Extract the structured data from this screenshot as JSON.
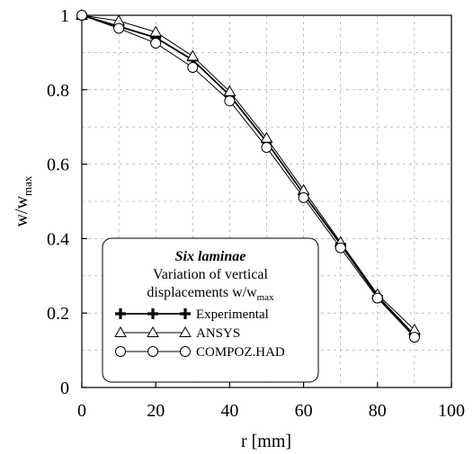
{
  "chart_data": {
    "type": "line",
    "xlabel": "r [mm]",
    "ylabel": {
      "base": "w/w",
      "sub": "max"
    },
    "xlim": [
      0,
      100
    ],
    "ylim": [
      0,
      1
    ],
    "x_ticks": [
      0,
      20,
      40,
      60,
      80,
      100
    ],
    "y_ticks": [
      0,
      0.2,
      0.4,
      0.6,
      0.8,
      1
    ],
    "x_tick_labels": [
      "0",
      "20",
      "40",
      "60",
      "80",
      "100"
    ],
    "y_tick_labels": [
      "0",
      "0.2",
      "0.4",
      "0.6",
      "0.8",
      "1"
    ],
    "grid": true,
    "legend": {
      "placement": "lower-left",
      "title": "Six laminae",
      "subtitle_line1": "Variation of vertical",
      "subtitle_line2_base": "displacements w/w",
      "subtitle_line2_sub": "max"
    },
    "series": [
      {
        "name": "Experimental",
        "marker": "plus",
        "x": [
          0,
          10,
          20,
          30,
          40,
          50,
          60,
          70,
          80,
          90
        ],
        "y": [
          1.0,
          0.97,
          0.94,
          0.88,
          0.785,
          0.66,
          0.52,
          0.385,
          0.245,
          0.14
        ]
      },
      {
        "name": "ANSYS",
        "marker": "triangle",
        "x": [
          0,
          10,
          20,
          30,
          40,
          50,
          60,
          70,
          80,
          90
        ],
        "y": [
          1.0,
          0.985,
          0.955,
          0.89,
          0.795,
          0.67,
          0.53,
          0.39,
          0.25,
          0.155
        ]
      },
      {
        "name": "COMPOZ.HAD",
        "marker": "circle",
        "x": [
          0,
          10,
          20,
          30,
          40,
          50,
          60,
          70,
          80,
          90
        ],
        "y": [
          1.0,
          0.965,
          0.925,
          0.86,
          0.77,
          0.645,
          0.51,
          0.375,
          0.24,
          0.135
        ]
      }
    ]
  }
}
